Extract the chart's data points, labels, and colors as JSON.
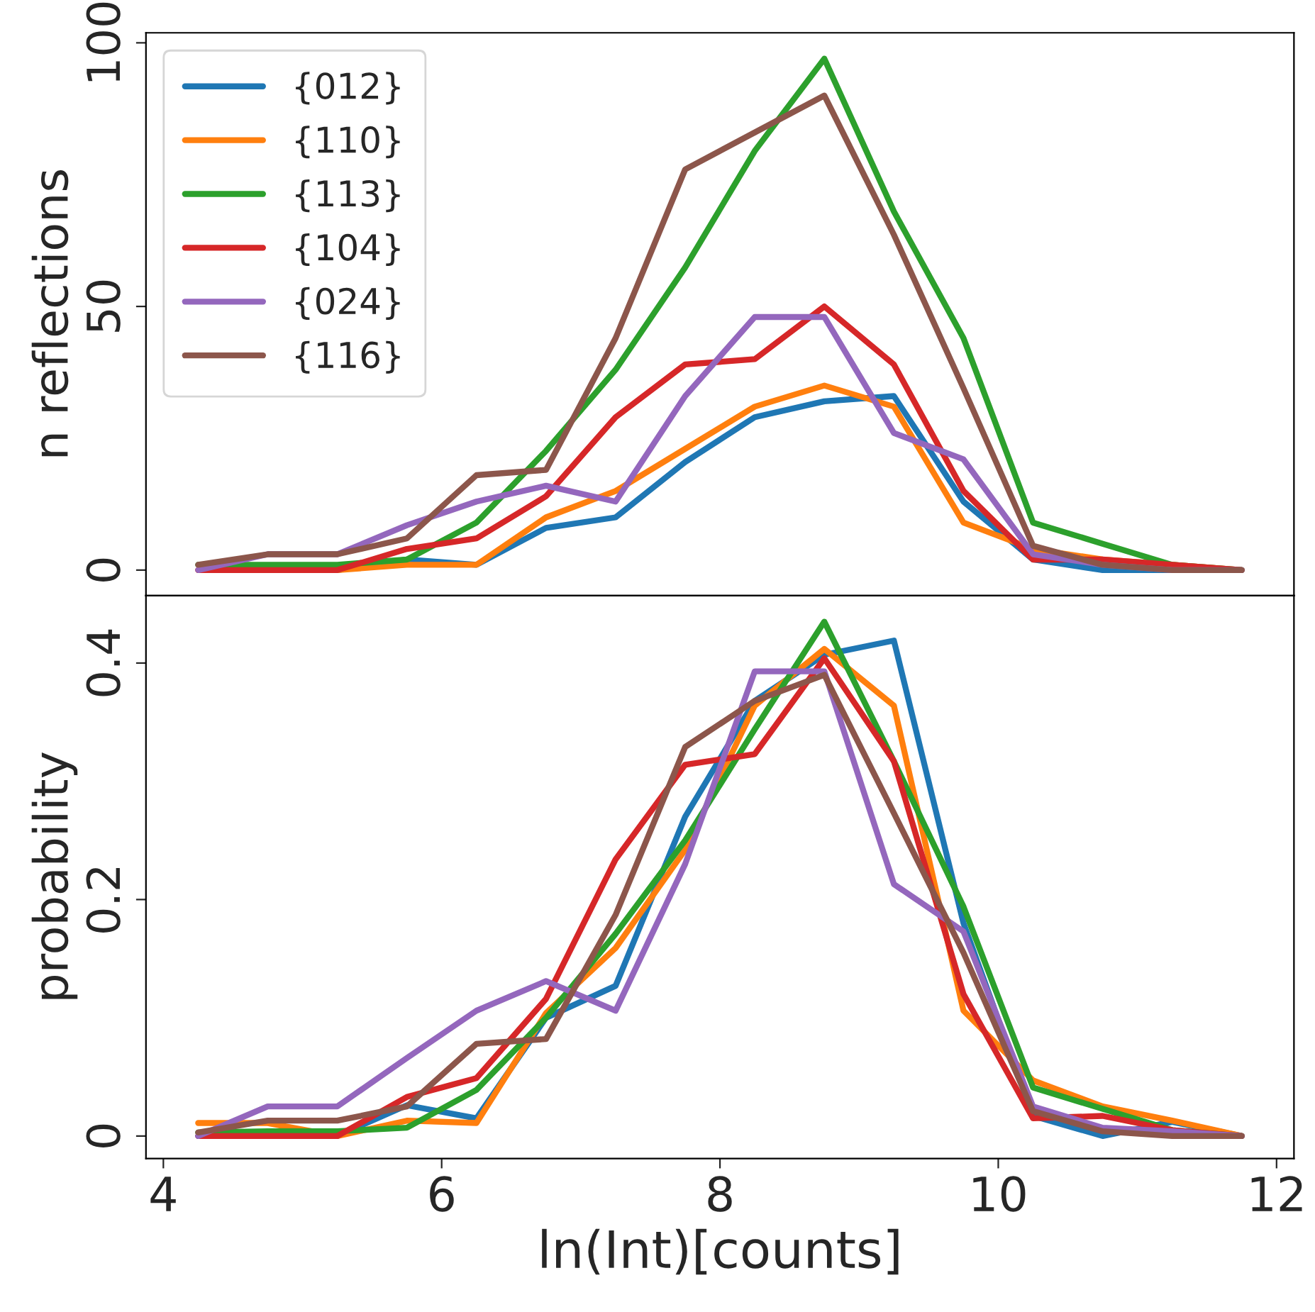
{
  "chart_data": [
    {
      "type": "line",
      "ylabel": "n reflections",
      "x": [
        4.25,
        4.75,
        5.25,
        5.75,
        6.25,
        6.75,
        7.25,
        7.75,
        8.25,
        8.75,
        9.25,
        9.75,
        10.25,
        10.75,
        11.25,
        11.75
      ],
      "xlim": [
        3.875,
        12.125
      ],
      "xticks": [
        4,
        6,
        8,
        10,
        12
      ],
      "ylim": [
        -4.85,
        101.9
      ],
      "yticks": [
        0,
        50,
        100
      ],
      "tick_labels": "y",
      "legend": "top left",
      "grid": false,
      "line_style": "solid",
      "marker": "none",
      "series": [
        {
          "name": "{012}",
          "color": "#1f77b4",
          "values": [
            null,
            null,
            0,
            2,
            1,
            8,
            10,
            20.5,
            29,
            32,
            33,
            13,
            2,
            0,
            0,
            0
          ]
        },
        {
          "name": "{110}",
          "color": "#ff7f0e",
          "values": [
            0,
            0,
            0,
            1,
            1,
            10,
            15,
            23,
            31,
            35,
            31,
            9,
            4,
            2,
            1,
            0
          ]
        },
        {
          "name": "{113}",
          "color": "#2ca02c",
          "values": [
            1,
            1,
            1,
            2,
            9,
            22.6,
            38,
            57.4,
            79.5,
            97,
            68,
            44,
            9,
            5,
            1,
            0
          ]
        },
        {
          "name": "{104}",
          "color": "#d62728",
          "values": [
            0,
            0,
            0,
            4,
            6,
            14,
            29,
            39,
            40,
            50,
            39,
            15,
            2,
            2,
            1,
            0
          ]
        },
        {
          "name": "{024}",
          "color": "#9467bd",
          "values": [
            0,
            3,
            3,
            8.5,
            13,
            16,
            13,
            33,
            48,
            48,
            26,
            21,
            3,
            1,
            0,
            0
          ]
        },
        {
          "name": "{116}",
          "color": "#8c564b",
          "values": [
            1,
            3,
            3,
            6,
            18,
            19,
            44,
            76,
            83,
            90,
            63.6,
            34.5,
            4.6,
            1,
            0,
            0
          ]
        }
      ]
    },
    {
      "type": "line",
      "ylabel": "probability",
      "xlabel": "ln(Int)[counts]",
      "x": [
        4.25,
        4.75,
        5.25,
        5.75,
        6.25,
        6.75,
        7.25,
        7.75,
        8.25,
        8.75,
        9.25,
        9.75,
        10.25,
        10.75,
        11.25,
        11.75
      ],
      "xlim": [
        3.875,
        12.125
      ],
      "xticks": [
        4,
        6,
        8,
        10,
        12
      ],
      "ylim": [
        -0.019,
        0.457
      ],
      "yticks": [
        0,
        0.2,
        0.4
      ],
      "legend": false,
      "grid": false,
      "line_style": "solid",
      "marker": "none",
      "series": [
        {
          "color": "#1f77b4",
          "values": [
            0,
            0,
            0,
            0.026,
            0.015,
            0.1,
            0.127,
            0.27,
            0.368,
            0.407,
            0.419,
            0.18,
            0.017,
            0,
            0.012,
            0
          ]
        },
        {
          "color": "#ff7f0e",
          "values": [
            0.011,
            0.011,
            0,
            0.013,
            0.011,
            0.104,
            0.159,
            0.242,
            0.364,
            0.412,
            0.364,
            0.106,
            0.047,
            0.025,
            0.013,
            0
          ]
        },
        {
          "color": "#2ca02c",
          "values": [
            0.003,
            0.004,
            0.004,
            0.007,
            0.039,
            0.1,
            0.171,
            0.25,
            0.344,
            0.435,
            0.317,
            0.194,
            0.041,
            0.023,
            0.005,
            0
          ]
        },
        {
          "color": "#d62728",
          "values": [
            0,
            0,
            0,
            0.033,
            0.049,
            0.116,
            0.234,
            0.314,
            0.323,
            0.404,
            0.317,
            0.12,
            0.015,
            0.017,
            0.005,
            0
          ]
        },
        {
          "color": "#9467bd",
          "values": [
            0,
            0.025,
            0.025,
            0.066,
            0.106,
            0.131,
            0.106,
            0.23,
            0.393,
            0.393,
            0.213,
            0.173,
            0.025,
            0.007,
            0.004,
            0
          ]
        },
        {
          "color": "#8c564b",
          "values": [
            0.003,
            0.013,
            0.013,
            0.025,
            0.078,
            0.082,
            0.187,
            0.329,
            0.368,
            0.39,
            0.273,
            0.155,
            0.021,
            0.004,
            0,
            0
          ]
        }
      ]
    }
  ]
}
